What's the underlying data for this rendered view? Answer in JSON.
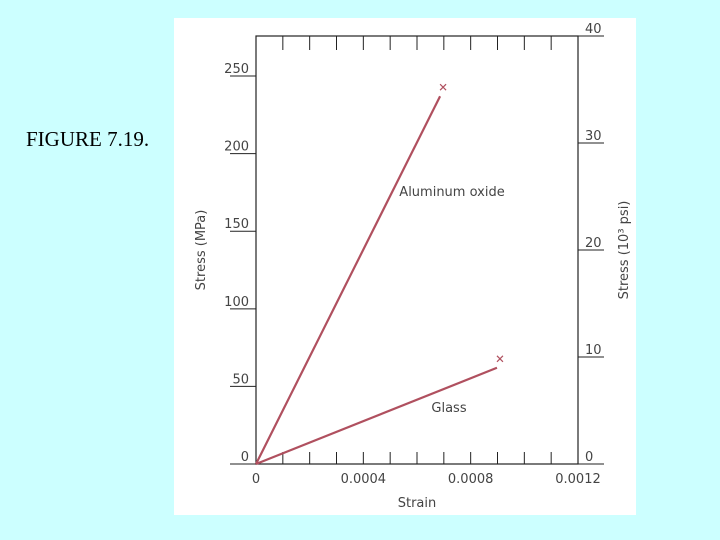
{
  "label": "FIGURE 7.19.",
  "chart_data": {
    "type": "line",
    "xlabel": "Strain",
    "ylabel": "Stress (MPa)",
    "y2label": "Stress (10³ psi)",
    "xlim": [
      0,
      0.0012
    ],
    "xticks": [
      0,
      0.0004,
      0.0008,
      0.0012
    ],
    "ylim": [
      0,
      275.8
    ],
    "yticks": [
      0,
      50,
      100,
      150,
      200,
      250
    ],
    "y2lim": [
      0,
      40
    ],
    "y2ticks": [
      0,
      10,
      20,
      30,
      40
    ],
    "series": [
      {
        "name": "Aluminum oxide",
        "color": "#b0505f",
        "x": [
          0,
          0.000686
        ],
        "values": [
          0,
          237
        ]
      },
      {
        "name": "Glass",
        "color": "#b0505f",
        "x": [
          0,
          0.000898
        ],
        "values": [
          0,
          62
        ]
      }
    ]
  }
}
